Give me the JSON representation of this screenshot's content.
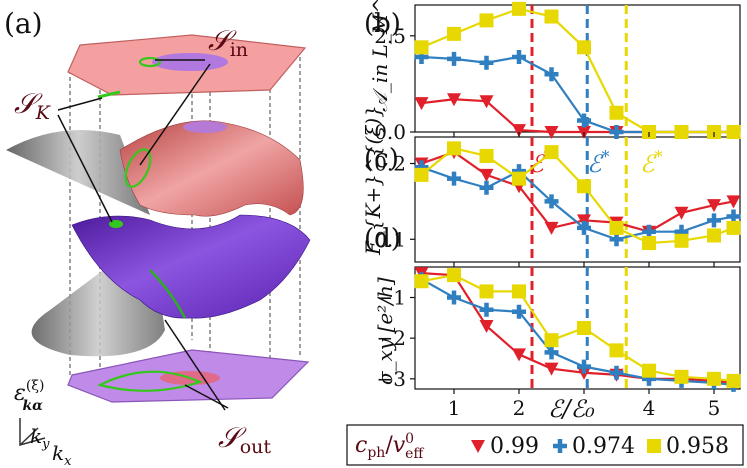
{
  "panel_labels": {
    "a": "(a)",
    "b": "(b)",
    "c": "(c)",
    "d": "(d)"
  },
  "surface_labels": {
    "s_in_main": "𝒮",
    "s_in_sub": "in",
    "s_k_main": "𝒮",
    "s_k_sub": "K",
    "s_out_main": "𝒮",
    "s_out_sub": "out"
  },
  "axes3d": {
    "energy_main": "ε",
    "energy_sup": "(ξ)",
    "energy_sub": "𝒌α",
    "ky": "k",
    "ky_sub": "y",
    "kx": "k",
    "kx_sub": "x"
  },
  "thresholds": {
    "label_main": "ℰ",
    "label_sup": "*",
    "values": [
      2.2,
      3.05,
      3.65
    ],
    "colors": [
      "#e0202a",
      "#2f7fc1",
      "#e6d800"
    ]
  },
  "legend": {
    "param_main": "c",
    "param_sub": "ph",
    "param_sep": "/",
    "param_v": "v",
    "param_v_sup": "0",
    "param_v_sub": "eff",
    "entries": [
      {
        "marker": "triangle-down",
        "label": "0.99",
        "color": "#e0202a"
      },
      {
        "marker": "plus",
        "label": "0.974",
        "color": "#2f7fc1"
      },
      {
        "marker": "square",
        "label": "0.958",
        "color": "#e6d800"
      }
    ]
  },
  "chart_data": [
    {
      "panel": "b",
      "type": "line",
      "ylabel": "𝒜_in L_M^2",
      "xlim": [
        0.4,
        5.4
      ],
      "ylim": [
        0,
        3.3
      ],
      "yticks": [
        "0.0",
        "2.5"
      ],
      "ytick_values": [
        0,
        2.5
      ],
      "series": [
        {
          "name": "0.99",
          "color": "#e0202a",
          "marker": "triangle-down",
          "x": [
            0.5,
            1.0,
            1.5,
            2.0,
            2.5,
            3.0,
            3.5,
            4.0,
            4.5,
            5.0,
            5.3
          ],
          "y": [
            0.75,
            0.85,
            0.8,
            0.05,
            0.0,
            0.0,
            0.0,
            0.0,
            0.0,
            0.0,
            0.0
          ]
        },
        {
          "name": "0.974",
          "color": "#2f7fc1",
          "marker": "plus",
          "x": [
            0.5,
            1.0,
            1.5,
            2.0,
            2.5,
            3.0,
            3.5,
            4.0,
            4.5,
            5.0,
            5.3
          ],
          "y": [
            1.95,
            1.9,
            1.8,
            1.95,
            1.5,
            0.3,
            0.0,
            0.0,
            0.0,
            0.0,
            0.0
          ]
        },
        {
          "name": "0.958",
          "color": "#e6d800",
          "marker": "square",
          "x": [
            0.5,
            1.0,
            1.5,
            2.0,
            2.5,
            3.0,
            3.5,
            4.0,
            4.5,
            5.0,
            5.3
          ],
          "y": [
            2.2,
            2.55,
            2.9,
            3.2,
            3.0,
            2.2,
            0.5,
            0.0,
            0.0,
            0.0,
            0.0
          ]
        }
      ]
    },
    {
      "panel": "c",
      "type": "line",
      "ylabel": "F_{K+}^{(ξ)}",
      "xlim": [
        0.4,
        5.4
      ],
      "ylim": [
        0.07,
        0.235
      ],
      "yticks": [
        "0.1",
        "0.2"
      ],
      "ytick_values": [
        0.1,
        0.2
      ],
      "series": [
        {
          "name": "0.99",
          "color": "#e0202a",
          "marker": "triangle-down",
          "x": [
            0.5,
            1.0,
            1.5,
            2.0,
            2.5,
            3.0,
            3.5,
            4.0,
            4.5,
            5.0,
            5.3
          ],
          "y": [
            0.2,
            0.215,
            0.185,
            0.17,
            0.115,
            0.125,
            0.122,
            0.11,
            0.135,
            0.145,
            0.15
          ]
        },
        {
          "name": "0.974",
          "color": "#2f7fc1",
          "marker": "plus",
          "x": [
            0.5,
            1.0,
            1.5,
            2.0,
            2.5,
            3.0,
            3.5,
            4.0,
            4.5,
            5.0,
            5.3
          ],
          "y": [
            0.195,
            0.18,
            0.168,
            0.19,
            0.15,
            0.115,
            0.1,
            0.11,
            0.11,
            0.125,
            0.13
          ]
        },
        {
          "name": "0.958",
          "color": "#e6d800",
          "marker": "square",
          "x": [
            0.5,
            1.0,
            1.5,
            2.0,
            2.5,
            3.0,
            3.5,
            4.0,
            4.5,
            5.0,
            5.3
          ],
          "y": [
            0.185,
            0.22,
            0.21,
            0.18,
            0.215,
            0.17,
            0.115,
            0.095,
            0.098,
            0.105,
            0.115
          ]
        }
      ]
    },
    {
      "panel": "d",
      "type": "line",
      "ylabel": "σ_xy [e²/h]",
      "xlabel": "ℰ/ℰ₀",
      "xlim": [
        0.4,
        5.4
      ],
      "ylim": [
        -3.25,
        -0.25
      ],
      "yticks": [
        "−1",
        "−2",
        "−3"
      ],
      "ytick_values": [
        -1,
        -2,
        -3
      ],
      "xticks": [
        "1",
        "2",
        "4",
        "5"
      ],
      "xtick_values": [
        1,
        2,
        4,
        5
      ],
      "series": [
        {
          "name": "0.99",
          "color": "#e0202a",
          "marker": "triangle-down",
          "x": [
            0.5,
            1.0,
            1.5,
            2.0,
            2.5,
            3.0,
            3.5,
            4.0,
            4.5,
            5.0,
            5.3
          ],
          "y": [
            -0.4,
            -0.45,
            -1.7,
            -2.4,
            -2.75,
            -2.85,
            -2.9,
            -3.0,
            -3.0,
            -3.05,
            -3.1
          ]
        },
        {
          "name": "0.974",
          "color": "#2f7fc1",
          "marker": "plus",
          "x": [
            0.5,
            1.0,
            1.5,
            2.0,
            2.5,
            3.0,
            3.5,
            4.0,
            4.5,
            5.0,
            5.3
          ],
          "y": [
            -0.55,
            -1.0,
            -1.3,
            -1.35,
            -2.35,
            -2.7,
            -2.85,
            -3.0,
            -3.05,
            -3.1,
            -3.15
          ]
        },
        {
          "name": "0.958",
          "color": "#e6d800",
          "marker": "square",
          "x": [
            0.5,
            1.0,
            1.5,
            2.0,
            2.5,
            3.0,
            3.5,
            4.0,
            4.5,
            5.0,
            5.3
          ],
          "y": [
            -0.6,
            -0.45,
            -0.85,
            -0.85,
            -2.05,
            -1.75,
            -2.3,
            -2.8,
            -2.95,
            -3.0,
            -3.05
          ]
        }
      ]
    }
  ]
}
